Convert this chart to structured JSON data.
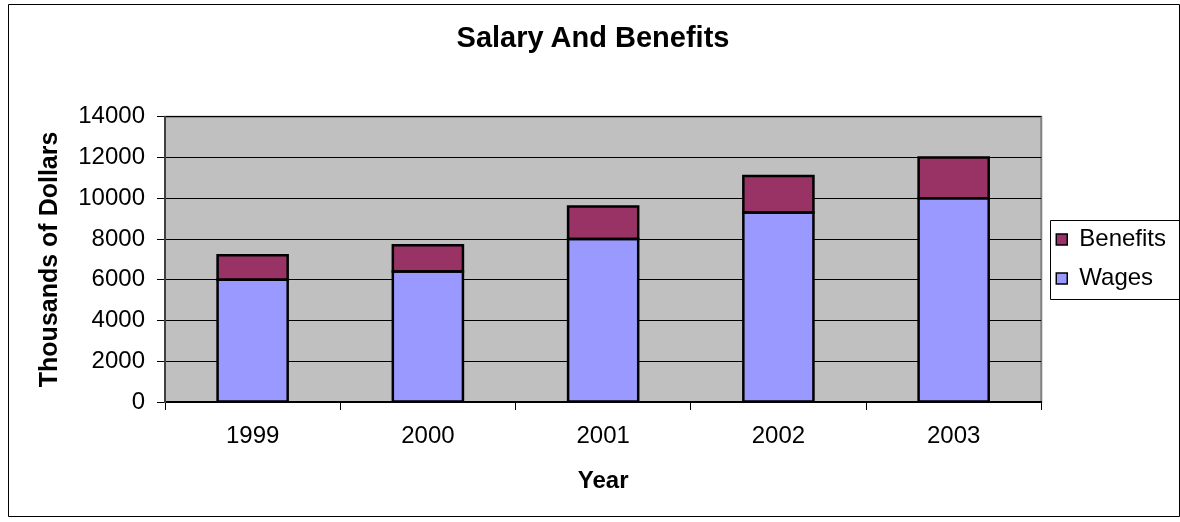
{
  "chart_data": {
    "type": "bar",
    "title": "Salary And Benefits",
    "xlabel": "Year",
    "ylabel": "Thousands of Dollars",
    "categories": [
      "1999",
      "2000",
      "2001",
      "2002",
      "2003"
    ],
    "series": [
      {
        "name": "Wages",
        "color": "#9999ff",
        "values": [
          6000,
          6400,
          8000,
          9300,
          10000
        ]
      },
      {
        "name": "Benefits",
        "color": "#993366",
        "values": [
          1200,
          1300,
          1600,
          1800,
          2000
        ]
      }
    ],
    "stacked": true,
    "ylim": [
      0,
      14000
    ],
    "yticks": [
      0,
      2000,
      4000,
      6000,
      8000,
      10000,
      12000,
      14000
    ],
    "grid": "y",
    "legend": "right"
  }
}
